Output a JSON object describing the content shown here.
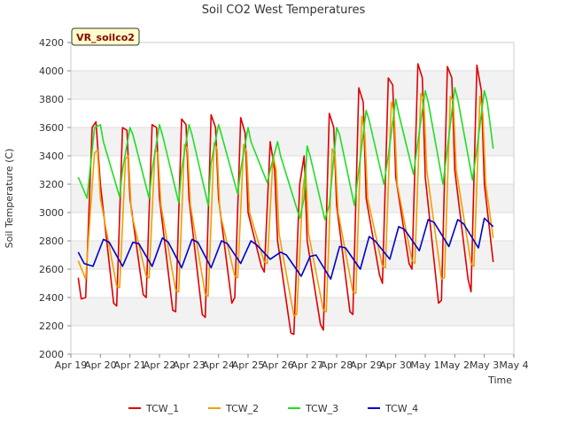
{
  "chart_data": {
    "type": "line",
    "title": "Soil CO2 West Temperatures",
    "xlabel": "Time",
    "ylabel": "Soil Temperature (C)",
    "badge": "VR_soilco2",
    "ylim": [
      2000,
      4200
    ],
    "yticks": [
      2000,
      2200,
      2400,
      2600,
      2800,
      3000,
      3200,
      3400,
      3600,
      3800,
      4000,
      4200
    ],
    "xlim": [
      0,
      15
    ],
    "xticks": [
      {
        "pos": 0,
        "label": "Apr 19"
      },
      {
        "pos": 1,
        "label": "Apr 20"
      },
      {
        "pos": 2,
        "label": "Apr 21"
      },
      {
        "pos": 3,
        "label": "Apr 22"
      },
      {
        "pos": 4,
        "label": "Apr 23"
      },
      {
        "pos": 5,
        "label": "Apr 24"
      },
      {
        "pos": 6,
        "label": "Apr 25"
      },
      {
        "pos": 7,
        "label": "Apr 26"
      },
      {
        "pos": 8,
        "label": "Apr 27"
      },
      {
        "pos": 9,
        "label": "Apr 28"
      },
      {
        "pos": 10,
        "label": "Apr 29"
      },
      {
        "pos": 11,
        "label": "Apr 30"
      },
      {
        "pos": 12,
        "label": "May 1"
      },
      {
        "pos": 13,
        "label": "May 2"
      },
      {
        "pos": 14,
        "label": "May 3"
      },
      {
        "pos": 15,
        "label": "May 4"
      }
    ],
    "grid": "horizontal bands",
    "legend_position": "bottom",
    "series": [
      {
        "name": "TCW_1",
        "color": "#e00000",
        "x": [
          0.25,
          0.35,
          0.5,
          0.72,
          0.85,
          1.0,
          1.45,
          1.55,
          1.75,
          1.9,
          2.0,
          2.45,
          2.55,
          2.75,
          2.9,
          3.0,
          3.45,
          3.55,
          3.75,
          3.9,
          4.0,
          4.45,
          4.55,
          4.75,
          4.9,
          5.0,
          5.45,
          5.55,
          5.75,
          5.9,
          6.0,
          6.45,
          6.55,
          6.75,
          6.9,
          7.0,
          7.45,
          7.55,
          7.75,
          7.9,
          8.0,
          8.45,
          8.55,
          8.75,
          8.9,
          9.0,
          9.45,
          9.55,
          9.75,
          9.9,
          10.0,
          10.45,
          10.55,
          10.75,
          10.9,
          11.0,
          11.45,
          11.55,
          11.75,
          11.9,
          12.0,
          12.45,
          12.55,
          12.75,
          12.9,
          13.0,
          13.45,
          13.55,
          13.75,
          13.9,
          14.0,
          14.3
        ],
        "y": [
          2540,
          2390,
          2400,
          3600,
          3640,
          3200,
          2360,
          2340,
          3600,
          3580,
          3100,
          2420,
          2400,
          3620,
          3600,
          3100,
          2310,
          2300,
          3660,
          3620,
          3100,
          2280,
          2260,
          3690,
          3600,
          3100,
          2360,
          2400,
          3670,
          3560,
          3000,
          2620,
          2580,
          3500,
          3300,
          2800,
          2150,
          2140,
          3200,
          3400,
          2800,
          2210,
          2170,
          3700,
          3600,
          3050,
          2300,
          2280,
          3880,
          3780,
          3100,
          2560,
          2500,
          3950,
          3900,
          3250,
          2640,
          2600,
          4050,
          3950,
          3250,
          2360,
          2380,
          4030,
          3950,
          3300,
          2530,
          2440,
          4040,
          3860,
          3200,
          2650
        ]
      },
      {
        "name": "TCW_2",
        "color": "#f0a000",
        "x": [
          0.25,
          0.5,
          0.8,
          0.9,
          1.0,
          1.55,
          1.65,
          1.85,
          1.95,
          2.05,
          2.55,
          2.65,
          2.85,
          2.95,
          3.05,
          3.55,
          3.65,
          3.85,
          3.95,
          4.05,
          4.55,
          4.65,
          4.85,
          4.95,
          5.05,
          5.55,
          5.65,
          5.85,
          5.95,
          6.05,
          6.55,
          6.65,
          6.85,
          6.95,
          7.05,
          7.55,
          7.65,
          7.85,
          7.95,
          8.05,
          8.55,
          8.65,
          8.85,
          8.95,
          9.05,
          9.55,
          9.65,
          9.85,
          9.95,
          10.05,
          10.55,
          10.65,
          10.85,
          10.95,
          11.05,
          11.55,
          11.65,
          11.85,
          11.95,
          12.05,
          12.55,
          12.65,
          12.85,
          12.95,
          13.05,
          13.55,
          13.65,
          13.85,
          13.95,
          14.05,
          14.3
        ],
        "y": [
          2660,
          2530,
          3420,
          3440,
          3100,
          2480,
          2470,
          3380,
          3400,
          3000,
          2550,
          2540,
          3440,
          3420,
          3050,
          2450,
          2440,
          3480,
          3450,
          3050,
          2420,
          2410,
          3490,
          3450,
          3000,
          2550,
          2540,
          3480,
          3430,
          3000,
          2650,
          2640,
          3400,
          3300,
          2850,
          2270,
          2280,
          3150,
          3320,
          2850,
          2310,
          2300,
          3450,
          3400,
          3000,
          2440,
          2430,
          3680,
          3560,
          3100,
          2620,
          2610,
          3780,
          3700,
          3200,
          2660,
          2640,
          3840,
          3800,
          3300,
          2530,
          2540,
          3820,
          3780,
          3300,
          2640,
          2620,
          3820,
          3700,
          3200,
          2820
        ]
      },
      {
        "name": "TCW_3",
        "color": "#22dd22",
        "x": [
          0.25,
          0.55,
          0.8,
          1.0,
          1.1,
          1.65,
          1.75,
          2.0,
          2.1,
          2.65,
          2.75,
          3.0,
          3.1,
          3.65,
          3.75,
          4.0,
          4.1,
          4.65,
          4.75,
          5.0,
          5.1,
          5.65,
          5.75,
          6.0,
          6.1,
          6.65,
          6.75,
          7.0,
          7.1,
          7.75,
          7.9,
          8.0,
          8.1,
          8.6,
          8.75,
          9.0,
          9.1,
          9.6,
          9.75,
          10.0,
          10.1,
          10.6,
          10.75,
          11.0,
          11.1,
          11.6,
          11.75,
          12.0,
          12.1,
          12.6,
          12.75,
          13.0,
          13.1,
          13.6,
          13.75,
          14.0,
          14.1,
          14.3
        ],
        "y": [
          3250,
          3100,
          3600,
          3620,
          3500,
          3110,
          3300,
          3600,
          3550,
          3100,
          3300,
          3620,
          3550,
          3070,
          3300,
          3620,
          3550,
          3050,
          3350,
          3620,
          3550,
          3130,
          3300,
          3600,
          3500,
          3210,
          3300,
          3500,
          3400,
          2960,
          3100,
          3470,
          3400,
          2950,
          3050,
          3600,
          3550,
          3050,
          3300,
          3720,
          3650,
          3200,
          3400,
          3800,
          3700,
          3270,
          3500,
          3860,
          3780,
          3200,
          3450,
          3880,
          3800,
          3230,
          3450,
          3860,
          3780,
          3450
        ]
      },
      {
        "name": "TCW_4",
        "color": "#0000cc",
        "x": [
          0.25,
          0.45,
          0.75,
          1.1,
          1.3,
          1.75,
          2.1,
          2.3,
          2.75,
          3.1,
          3.3,
          3.75,
          4.1,
          4.3,
          4.75,
          5.1,
          5.3,
          5.75,
          6.1,
          6.3,
          6.75,
          7.1,
          7.3,
          7.8,
          8.1,
          8.3,
          8.8,
          9.1,
          9.3,
          9.8,
          10.1,
          10.3,
          10.8,
          11.1,
          11.3,
          11.8,
          12.1,
          12.3,
          12.8,
          13.1,
          13.3,
          13.8,
          14.0,
          14.3
        ],
        "y": [
          2720,
          2640,
          2620,
          2810,
          2790,
          2620,
          2790,
          2780,
          2620,
          2820,
          2790,
          2610,
          2810,
          2790,
          2610,
          2800,
          2780,
          2640,
          2800,
          2770,
          2670,
          2720,
          2700,
          2550,
          2690,
          2700,
          2530,
          2760,
          2750,
          2600,
          2830,
          2800,
          2670,
          2900,
          2880,
          2730,
          2950,
          2930,
          2760,
          2950,
          2920,
          2750,
          2960,
          2900
        ]
      }
    ]
  }
}
